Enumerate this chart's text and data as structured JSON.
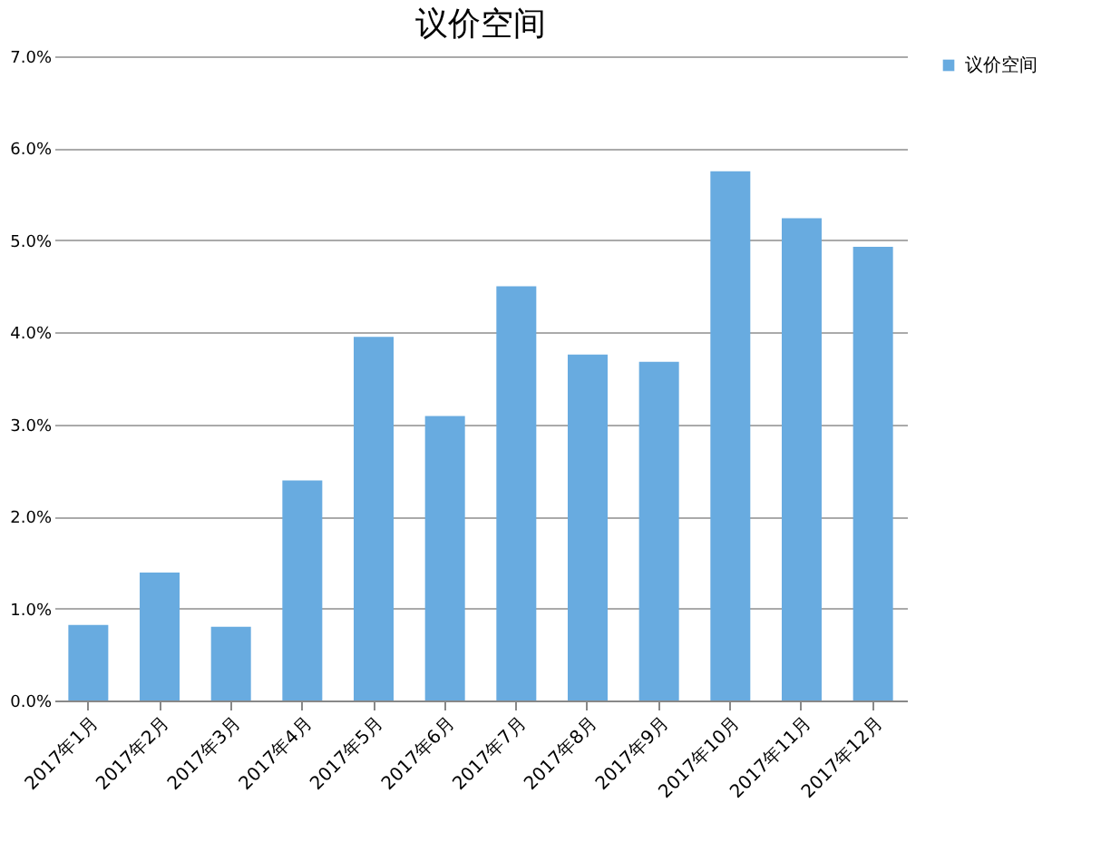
{
  "chart_data": {
    "type": "bar",
    "title": "议价空间",
    "categories": [
      "2017年1月",
      "2017年2月",
      "2017年3月",
      "2017年4月",
      "2017年5月",
      "2017年6月",
      "2017年7月",
      "2017年8月",
      "2017年9月",
      "2017年10月",
      "2017年11月",
      "2017年12月"
    ],
    "series": [
      {
        "name": "议价空间",
        "color": "#68abe0",
        "values": [
          0.82,
          1.39,
          0.8,
          2.39,
          3.95,
          3.09,
          4.5,
          3.76,
          3.68,
          5.75,
          5.24,
          4.93
        ]
      }
    ],
    "ylim": [
      0,
      7
    ],
    "yticks": [
      {
        "value": 0,
        "label": "0.0%"
      },
      {
        "value": 1,
        "label": "1.0%"
      },
      {
        "value": 2,
        "label": "2.0%"
      },
      {
        "value": 3,
        "label": "3.0%"
      },
      {
        "value": 4,
        "label": "4.0%"
      },
      {
        "value": 5,
        "label": "5.0%"
      },
      {
        "value": 6,
        "label": "6.0%"
      },
      {
        "value": 7,
        "label": "7.0%"
      }
    ],
    "grid": "y",
    "legend": "right"
  }
}
